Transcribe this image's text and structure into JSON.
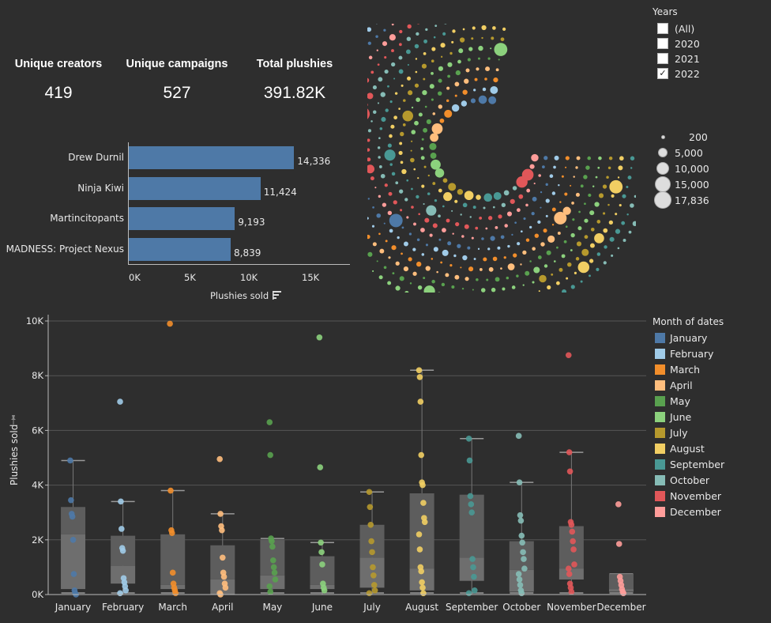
{
  "kpis": {
    "creators_label": "Unique creators",
    "creators_value": "419",
    "campaigns_label": "Unique campaigns",
    "campaigns_value": "527",
    "plushies_label": "Total plushies",
    "plushies_value": "391.82K"
  },
  "top_creators": {
    "items": [
      {
        "name": "Drew Durnil",
        "value": 14336,
        "label": "14,336"
      },
      {
        "name": "Ninja Kiwi",
        "value": 11424,
        "label": "11,424"
      },
      {
        "name": "Martincitopants",
        "value": 9193,
        "label": "9,193"
      },
      {
        "name": "MADNESS: Project Nexus",
        "value": 8839,
        "label": "8,839"
      }
    ],
    "ticks": [
      "0K",
      "5K",
      "10K",
      "15K"
    ],
    "axis_title": "Plushies sold",
    "bar_color": "#4e79a7"
  },
  "years_filter": {
    "title": "Years",
    "options": [
      {
        "label": "(All)",
        "checked": false
      },
      {
        "label": "2020",
        "checked": false
      },
      {
        "label": "2021",
        "checked": false
      },
      {
        "label": "2022",
        "checked": true
      }
    ]
  },
  "size_legend": {
    "items": [
      "200",
      "5,000",
      "10,000",
      "15,000",
      "17,836"
    ]
  },
  "month_legend": {
    "title": "Month of dates",
    "items": [
      {
        "label": "January",
        "color": "#4e79a7"
      },
      {
        "label": "February",
        "color": "#a0cbe8"
      },
      {
        "label": "March",
        "color": "#f28e2b"
      },
      {
        "label": "April",
        "color": "#ffbe7d"
      },
      {
        "label": "May",
        "color": "#59a14f"
      },
      {
        "label": "June",
        "color": "#8cd17d"
      },
      {
        "label": "July",
        "color": "#b6992d"
      },
      {
        "label": "August",
        "color": "#f1ce63"
      },
      {
        "label": "September",
        "color": "#499894"
      },
      {
        "label": "October",
        "color": "#86bcb6"
      },
      {
        "label": "November",
        "color": "#e15759"
      },
      {
        "label": "December",
        "color": "#ff9d9a"
      }
    ]
  },
  "chart_data": [
    {
      "type": "bar",
      "categories": [
        "Drew Durnil",
        "Ninja Kiwi",
        "Martincitopants",
        "MADNESS: Project Nexus"
      ],
      "values": [
        14336,
        11424,
        9193,
        8839
      ],
      "xlabel": "Plushies sold",
      "xlim": [
        0,
        18000
      ]
    },
    {
      "type": "scatter",
      "ylabel": "Plushies sold",
      "yticks": [
        "0K",
        "2K",
        "4K",
        "6K",
        "8K",
        "10K"
      ],
      "ylim": [
        0,
        10000
      ],
      "categories": [
        "January",
        "February",
        "March",
        "April",
        "May",
        "June",
        "July",
        "August",
        "September",
        "October",
        "November",
        "December"
      ],
      "boxes": [
        {
          "q1": 200,
          "median": 2200,
          "q3": 3200,
          "whisker_low": 0,
          "whisker_high": 4900
        },
        {
          "q1": 400,
          "median": 1050,
          "q3": 2150,
          "whisker_low": 0,
          "whisker_high": 3400
        },
        {
          "q1": 200,
          "median": 350,
          "q3": 2200,
          "whisker_low": 0,
          "whisker_high": 3800
        },
        {
          "q1": 0,
          "median": 550,
          "q3": 1800,
          "whisker_low": 0,
          "whisker_high": 2950
        },
        {
          "q1": 200,
          "median": 700,
          "q3": 2000,
          "whisker_low": 0,
          "whisker_high": 2050
        },
        {
          "q1": 200,
          "median": 350,
          "q3": 1400,
          "whisker_low": 0,
          "whisker_high": 1900
        },
        {
          "q1": 250,
          "median": 1350,
          "q3": 2550,
          "whisker_low": 0,
          "whisker_high": 3750
        },
        {
          "q1": 150,
          "median": 950,
          "q3": 3700,
          "whisker_low": 0,
          "whisker_high": 8200
        },
        {
          "q1": 500,
          "median": 1350,
          "q3": 3650,
          "whisker_low": 0,
          "whisker_high": 5700
        },
        {
          "q1": 100,
          "median": 900,
          "q3": 1950,
          "whisker_low": 0,
          "whisker_high": 4100
        },
        {
          "q1": 550,
          "median": 950,
          "q3": 2500,
          "whisker_low": 0,
          "whisker_high": 5200
        },
        {
          "q1": 100,
          "median": 200,
          "q3": 750,
          "whisker_low": 0,
          "whisker_high": 750
        }
      ],
      "points": [
        [
          4900,
          3450,
          2950,
          2850,
          2000,
          750,
          150,
          50,
          0
        ],
        [
          7050,
          3400,
          2400,
          1700,
          1600,
          600,
          450,
          300,
          150,
          50
        ],
        [
          9900,
          3800,
          2350,
          2250,
          800,
          400,
          250,
          150,
          50
        ],
        [
          4950,
          2950,
          2500,
          2350,
          1350,
          800,
          650,
          400,
          250,
          50,
          0
        ],
        [
          6300,
          5100,
          2050,
          1950,
          1750,
          1250,
          1000,
          800,
          550,
          300,
          100
        ],
        [
          9400,
          4650,
          1900,
          1550,
          1100,
          400,
          250,
          150
        ],
        [
          3750,
          3200,
          2550,
          1950,
          1550,
          1000,
          700,
          350,
          150,
          50
        ],
        [
          8200,
          7950,
          7050,
          5100,
          4100,
          4000,
          3350,
          2800,
          2650,
          2200,
          1650,
          1000,
          850,
          450,
          250,
          50
        ],
        [
          5700,
          4900,
          3600,
          3300,
          3000,
          1300,
          1000,
          650,
          150,
          50
        ],
        [
          5800,
          4100,
          2900,
          2700,
          2150,
          1900,
          1550,
          1300,
          950,
          750,
          550,
          350,
          150,
          50
        ],
        [
          8750,
          5200,
          4500,
          2650,
          2550,
          2300,
          1950,
          1650,
          1100,
          950,
          750,
          400,
          250,
          100
        ],
        [
          3300,
          1850,
          650,
          500,
          350,
          200,
          100,
          50
        ]
      ]
    }
  ]
}
